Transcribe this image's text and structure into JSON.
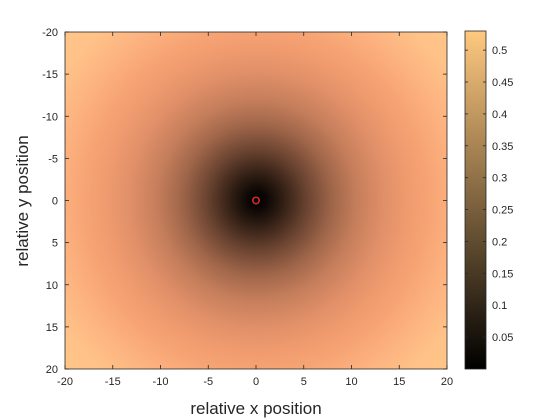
{
  "chart_data": {
    "type": "heatmap",
    "title": "",
    "xlabel": "relative x position",
    "ylabel": "relative y position",
    "xlim": [
      -20,
      20
    ],
    "ylim": [
      -20,
      20
    ],
    "y_direction": "reversed",
    "x_ticks": [
      "-20",
      "-15",
      "-10",
      "-5",
      "0",
      "5",
      "10",
      "15",
      "20"
    ],
    "y_ticks": [
      "-20",
      "-15",
      "-10",
      "-5",
      "0",
      "5",
      "10",
      "15",
      "20"
    ],
    "colormap": "copper",
    "color_range": [
      0,
      0.53
    ],
    "colorbar_ticks": [
      "0.05",
      "0.1",
      "0.15",
      "0.2",
      "0.25",
      "0.3",
      "0.35",
      "0.4",
      "0.45",
      "0.5"
    ],
    "colorbar_values": [
      0.05,
      0.1,
      0.15,
      0.2,
      0.25,
      0.3,
      0.35,
      0.4,
      0.45,
      0.5
    ],
    "field": {
      "description_function": "radial",
      "center": [
        0,
        0
      ],
      "value_at_edge_midpoint": 0.47,
      "value_at_corner": 0.53,
      "value_at_r5": 0.12,
      "value_at_r10": 0.29
    },
    "marker": {
      "x": 0,
      "y": 0,
      "color": "#d62728"
    },
    "grid": false
  }
}
